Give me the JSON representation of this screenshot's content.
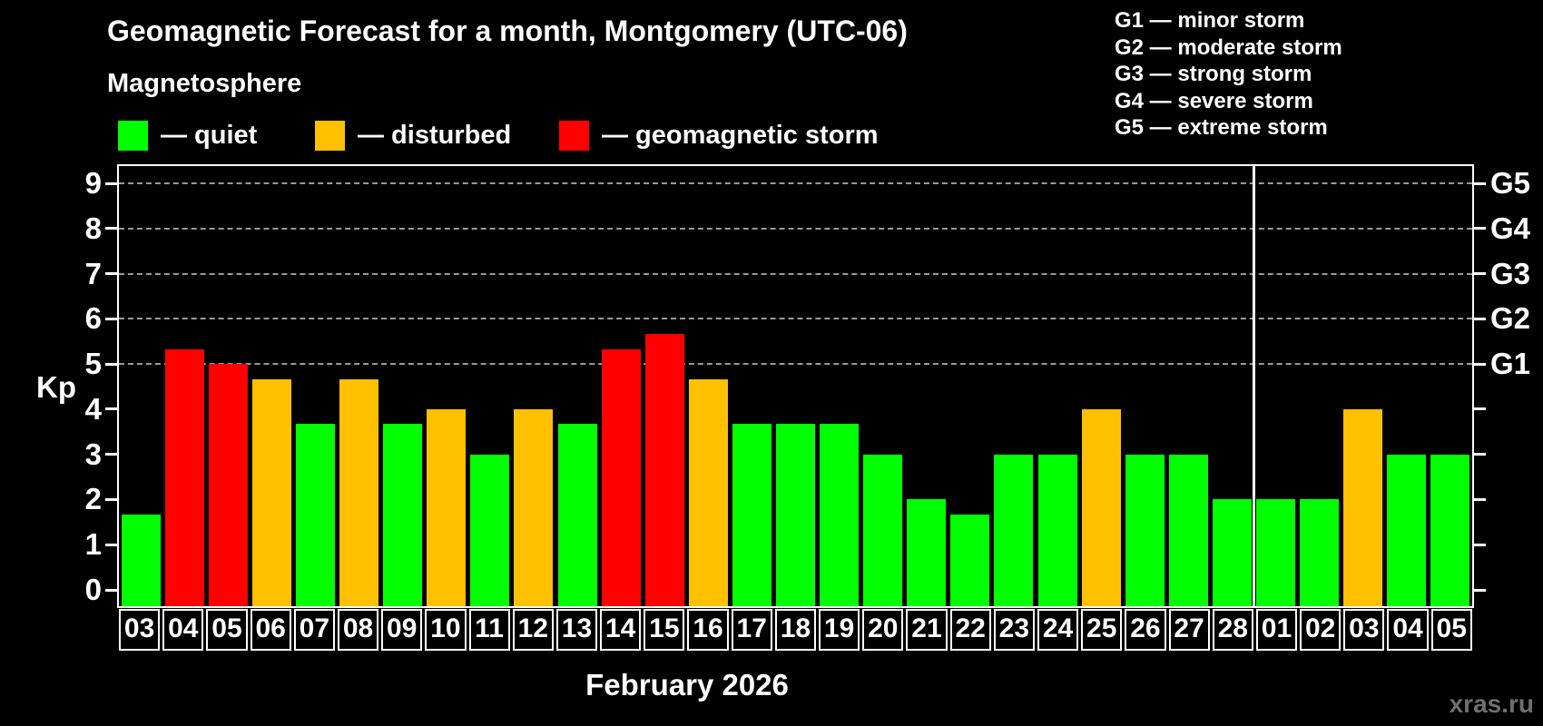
{
  "header": {
    "title": "Geomagnetic Forecast for a month, Montgomery (UTC-06)",
    "subtitle": "Magnetosphere"
  },
  "legend": {
    "items": [
      {
        "key": "quiet",
        "label": "— quiet",
        "color": "#00ff00"
      },
      {
        "key": "disturbed",
        "label": "— disturbed",
        "color": "#ffc000"
      },
      {
        "key": "storm",
        "label": "— geomagnetic storm",
        "color": "#ff0000"
      }
    ]
  },
  "g_legend": {
    "lines": [
      "G1 — minor storm",
      "G2 — moderate storm",
      "G3 — strong storm",
      "G4 — severe storm",
      "G5 — extreme storm"
    ]
  },
  "chart_data": {
    "type": "bar",
    "title": "Geomagnetic Forecast for a month, Montgomery (UTC-06)",
    "xlabel": "February 2026",
    "ylabel": "Kp",
    "ylim": [
      0,
      9
    ],
    "yticks": [
      0,
      1,
      2,
      3,
      4,
      5,
      6,
      7,
      8,
      9
    ],
    "gridlines_at": [
      5,
      6,
      7,
      8,
      9
    ],
    "grid": "dashed",
    "right_axis_labels": [
      {
        "kp": 5,
        "label": "G1"
      },
      {
        "kp": 6,
        "label": "G2"
      },
      {
        "kp": 7,
        "label": "G3"
      },
      {
        "kp": 8,
        "label": "G4"
      },
      {
        "kp": 9,
        "label": "G5"
      }
    ],
    "categories": [
      "03",
      "04",
      "05",
      "06",
      "07",
      "08",
      "09",
      "10",
      "11",
      "12",
      "13",
      "14",
      "15",
      "16",
      "17",
      "18",
      "19",
      "20",
      "21",
      "22",
      "23",
      "24",
      "25",
      "26",
      "27",
      "28",
      "01",
      "02",
      "03",
      "04",
      "05"
    ],
    "values": [
      1.67,
      5.33,
      5.0,
      4.67,
      3.67,
      4.67,
      3.67,
      4.0,
      3.0,
      4.0,
      3.67,
      5.33,
      5.67,
      4.67,
      3.67,
      3.67,
      3.67,
      3.0,
      2.0,
      1.67,
      3.0,
      3.0,
      4.0,
      3.0,
      3.0,
      2.0,
      2.0,
      2.0,
      4.0,
      3.0,
      3.0
    ],
    "levels": [
      "quiet",
      "storm",
      "storm",
      "disturbed",
      "quiet",
      "disturbed",
      "quiet",
      "disturbed",
      "quiet",
      "disturbed",
      "quiet",
      "storm",
      "storm",
      "disturbed",
      "quiet",
      "quiet",
      "quiet",
      "quiet",
      "quiet",
      "quiet",
      "quiet",
      "quiet",
      "disturbed",
      "quiet",
      "quiet",
      "quiet",
      "quiet",
      "quiet",
      "disturbed",
      "quiet",
      "quiet"
    ],
    "month_separator_after_index": 25,
    "legend_position": "top-left"
  },
  "colors": {
    "background": "#000000",
    "text": "#ffffff",
    "axis": "#ffffff",
    "grid": "#999999",
    "quiet": "#00ff00",
    "disturbed": "#ffc000",
    "storm": "#ff0000",
    "watermark": "#6f6f6f"
  },
  "watermark": "xras.ru"
}
